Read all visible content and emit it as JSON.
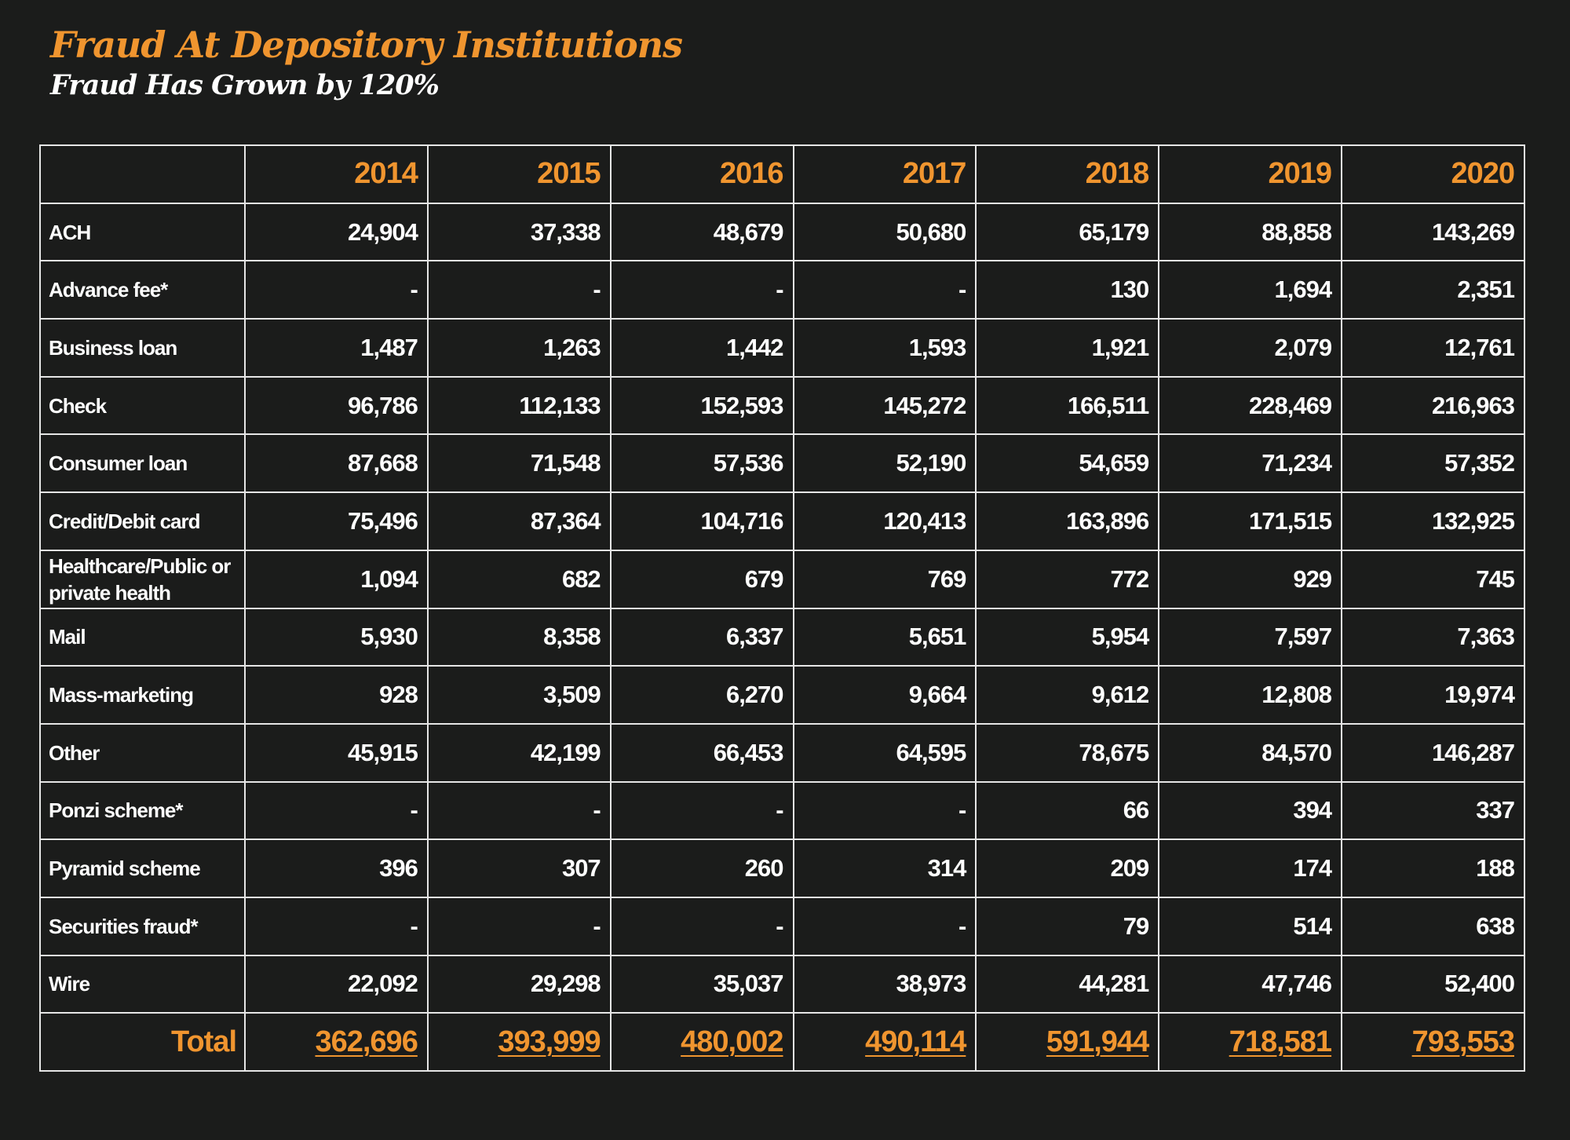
{
  "title": "Fraud At Depository Institutions",
  "subtitle": "Fraud Has Grown by 120%",
  "colors": {
    "background": "#1b1c1b",
    "accent": "#f0952f",
    "text": "#ffffff",
    "grid": "#e6e6e6"
  },
  "table": {
    "years": [
      "2014",
      "2015",
      "2016",
      "2017",
      "2018",
      "2019",
      "2020"
    ],
    "rows": [
      {
        "label": "ACH",
        "values": [
          "24,904",
          "37,338",
          "48,679",
          "50,680",
          "65,179",
          "88,858",
          "143,269"
        ]
      },
      {
        "label": "Advance fee*",
        "values": [
          "-",
          "-",
          "-",
          "-",
          "130",
          "1,694",
          "2,351"
        ]
      },
      {
        "label": "Business loan",
        "values": [
          "1,487",
          "1,263",
          "1,442",
          "1,593",
          "1,921",
          "2,079",
          "12,761"
        ]
      },
      {
        "label": "Check",
        "values": [
          "96,786",
          "112,133",
          "152,593",
          "145,272",
          "166,511",
          "228,469",
          "216,963"
        ]
      },
      {
        "label": "Consumer loan",
        "values": [
          "87,668",
          "71,548",
          "57,536",
          "52,190",
          "54,659",
          "71,234",
          "57,352"
        ]
      },
      {
        "label": "Credit/Debit card",
        "values": [
          "75,496",
          "87,364",
          "104,716",
          "120,413",
          "163,896",
          "171,515",
          "132,925"
        ]
      },
      {
        "label": "Healthcare/Public or private health",
        "values": [
          "1,094",
          "682",
          "679",
          "769",
          "772",
          "929",
          "745"
        ]
      },
      {
        "label": "Mail",
        "values": [
          "5,930",
          "8,358",
          "6,337",
          "5,651",
          "5,954",
          "7,597",
          "7,363"
        ]
      },
      {
        "label": "Mass-marketing",
        "values": [
          "928",
          "3,509",
          "6,270",
          "9,664",
          "9,612",
          "12,808",
          "19,974"
        ]
      },
      {
        "label": "Other",
        "values": [
          "45,915",
          "42,199",
          "66,453",
          "64,595",
          "78,675",
          "84,570",
          "146,287"
        ]
      },
      {
        "label": "Ponzi scheme*",
        "values": [
          "-",
          "-",
          "-",
          "-",
          "66",
          "394",
          "337"
        ]
      },
      {
        "label": "Pyramid scheme",
        "values": [
          "396",
          "307",
          "260",
          "314",
          "209",
          "174",
          "188"
        ]
      },
      {
        "label": "Securities fraud*",
        "values": [
          "-",
          "-",
          "-",
          "-",
          "79",
          "514",
          "638"
        ]
      },
      {
        "label": "Wire",
        "values": [
          "22,092",
          "29,298",
          "35,037",
          "38,973",
          "44,281",
          "47,746",
          "52,400"
        ]
      }
    ],
    "total": {
      "label": "Total",
      "values": [
        "362,696",
        "393,999",
        "480,002",
        "490,114",
        "591,944",
        "718,581",
        "793,553"
      ]
    }
  }
}
